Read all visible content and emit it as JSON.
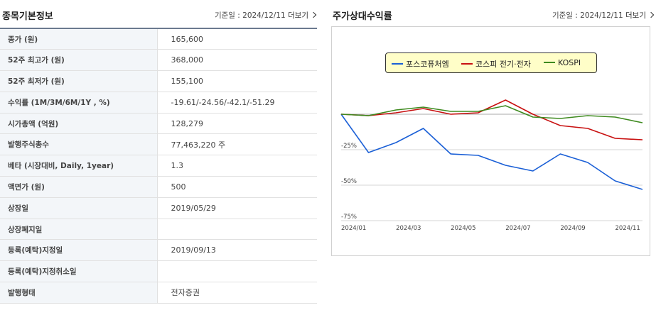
{
  "left": {
    "title": "종목기본정보",
    "ref_label": "기준일 : 2024/12/11",
    "more_label": "더보기",
    "rows": [
      {
        "k": "종가 (원)",
        "v": "165,600"
      },
      {
        "k": "52주 최고가 (원)",
        "v": "368,000"
      },
      {
        "k": "52주 최저가 (원)",
        "v": "155,100"
      },
      {
        "k": "수익률 (1M/3M/6M/1Y , %)",
        "v": "-19.61/-24.56/-42.1/-51.29"
      },
      {
        "k": "시가총액 (억원)",
        "v": "128,279"
      },
      {
        "k": "발행주식총수",
        "v": "77,463,220 주"
      },
      {
        "k": "베타 (시장대비, Daily, 1year)",
        "v": "1.3"
      },
      {
        "k": "액면가 (원)",
        "v": "500"
      },
      {
        "k": "상장일",
        "v": "2019/05/29"
      },
      {
        "k": "상장폐지일",
        "v": ""
      },
      {
        "k": "등록(예탁)지정일",
        "v": "2019/09/13"
      },
      {
        "k": "등록(예탁)지정취소일",
        "v": ""
      },
      {
        "k": "발행형태",
        "v": "전자증권"
      }
    ]
  },
  "right": {
    "title": "주가상대수익률",
    "ref_label": "기준일 : 2024/12/11",
    "more_label": "더보기"
  },
  "chart_data": {
    "type": "line",
    "x": [
      "2024/01",
      "2024/02",
      "2024/03",
      "2024/04",
      "2024/05",
      "2024/06",
      "2024/07",
      "2024/08",
      "2024/09",
      "2024/10",
      "2024/11",
      "2024/12"
    ],
    "x_tick_labels": [
      "2024/01",
      "2024/03",
      "2024/05",
      "2024/07",
      "2024/09",
      "2024/11"
    ],
    "y_tick_labels": [
      "-25%",
      "-50%",
      "-75%"
    ],
    "ylim": [
      -75,
      15
    ],
    "grid": "y-only",
    "legend_position": "top-center",
    "series": [
      {
        "name": "포스코퓨처엠",
        "color": "#1a5fd6",
        "values": [
          0,
          -27,
          -20,
          -10,
          -28,
          -29,
          -36,
          -40,
          -28,
          -34,
          -47,
          -53
        ]
      },
      {
        "name": "코스피 전기·전자",
        "color": "#c81010",
        "values": [
          0,
          -1,
          1,
          4,
          0,
          1,
          10,
          0,
          -8,
          -10,
          -17,
          -18
        ]
      },
      {
        "name": "KOSPI",
        "color": "#3e8a1f",
        "values": [
          0,
          -1,
          3,
          5,
          2,
          2,
          6,
          -2,
          -3,
          -1,
          -2,
          -6
        ]
      }
    ]
  }
}
